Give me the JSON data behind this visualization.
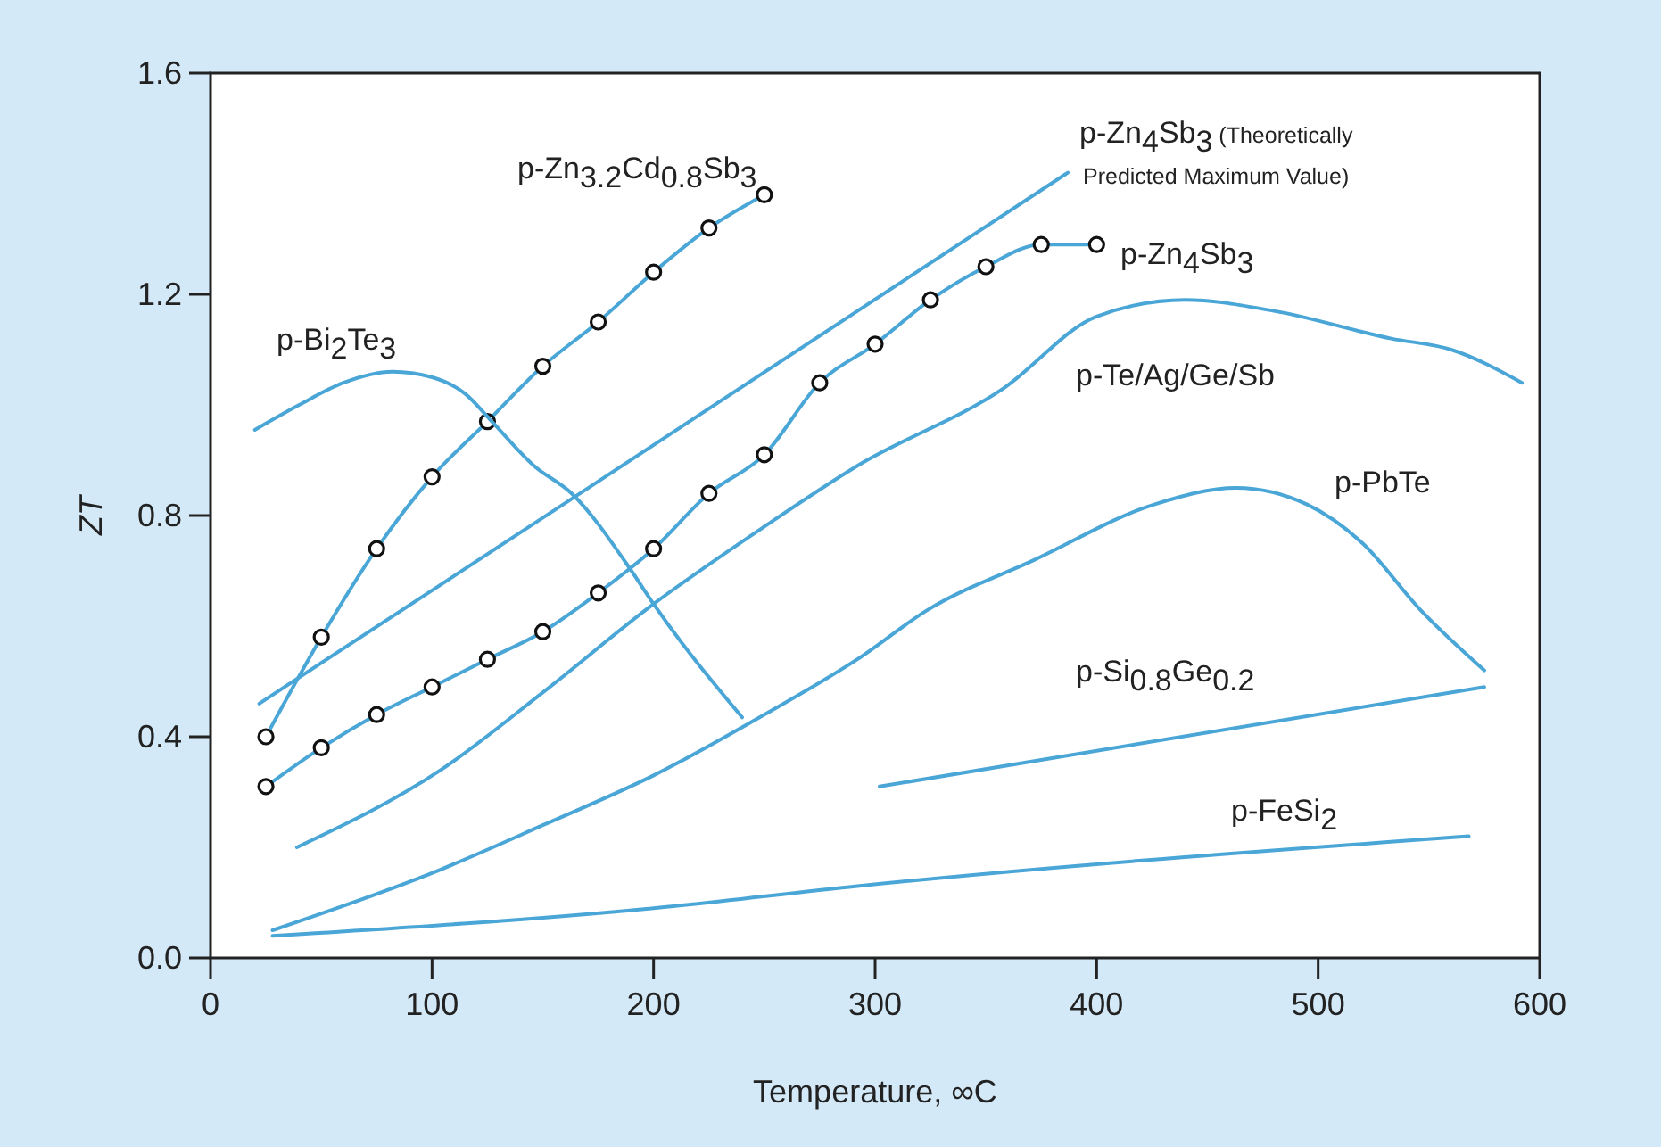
{
  "chart_data": {
    "type": "line",
    "xlabel": "Temperature, ∞C",
    "ylabel": "ZT",
    "xlim": [
      0,
      600
    ],
    "ylim": [
      0,
      1.6
    ],
    "xticks": [
      0,
      100,
      200,
      300,
      400,
      500,
      600
    ],
    "yticks": [
      {
        "value": 0,
        "label": "0.0"
      },
      {
        "value": 0.4,
        "label": "0.4"
      },
      {
        "value": 0.8,
        "label": "0.8"
      },
      {
        "value": 1.2,
        "label": "1.2"
      },
      {
        "value": 1.6,
        "label": "1.6"
      }
    ],
    "grid": false,
    "line_style": "solid",
    "series": [
      {
        "name": "p-Zn$_{3.2}$Cd$_{0.8}$Sb$_{3}$",
        "color": "#4aa6d6",
        "marker": "circle",
        "x": [
          25,
          50,
          75,
          100,
          125,
          150,
          175,
          200,
          225,
          250
        ],
        "values": [
          0.4,
          0.58,
          0.74,
          0.87,
          0.97,
          1.07,
          1.15,
          1.24,
          1.32,
          1.38
        ]
      },
      {
        "name": "p-Zn$_{4}$Sb$_{3}$ (Theoretically Predicted Maximum Value)",
        "color": "#4aa6d6",
        "marker": "none",
        "x": [
          22,
          163,
          387
        ],
        "values": [
          0.46,
          0.83,
          1.42
        ]
      },
      {
        "name": "p-Zn$_{4}$Sb$_{3}$",
        "color": "#4aa6d6",
        "marker": "circle",
        "x": [
          25,
          50,
          75,
          100,
          125,
          150,
          175,
          200,
          225,
          250,
          275,
          300,
          325,
          350,
          375,
          400
        ],
        "values": [
          0.31,
          0.38,
          0.44,
          0.49,
          0.54,
          0.59,
          0.66,
          0.74,
          0.84,
          0.91,
          1.04,
          1.11,
          1.19,
          1.25,
          1.29,
          1.29
        ]
      },
      {
        "name": "p-Bi$_{2}$Te$_{3}$",
        "color": "#4aa6d6",
        "marker": "none",
        "x": [
          20,
          40,
          60,
          82,
          100,
          115,
          127,
          146,
          163,
          190,
          200,
          240
        ],
        "values": [
          0.955,
          1.0,
          1.04,
          1.06,
          1.05,
          1.02,
          0.97,
          0.89,
          0.84,
          0.7,
          0.64,
          0.435
        ]
      },
      {
        "name": "p-Te/Ag/Ge/Sb",
        "color": "#4aa6d6",
        "marker": "none",
        "x": [
          39,
          104,
          150,
          200,
          250,
          292,
          358,
          400,
          440,
          480,
          533,
          560,
          592
        ],
        "values": [
          0.2,
          0.34,
          0.48,
          0.64,
          0.78,
          0.89,
          1.03,
          1.16,
          1.19,
          1.17,
          1.12,
          1.1,
          1.04
        ]
      },
      {
        "name": "p-PbTe",
        "color": "#4aa6d6",
        "marker": "none",
        "x": [
          28,
          104,
          150,
          200,
          250,
          292,
          324,
          372,
          426,
          463,
          495,
          520,
          546,
          575
        ],
        "values": [
          0.05,
          0.16,
          0.24,
          0.33,
          0.44,
          0.54,
          0.63,
          0.72,
          0.82,
          0.85,
          0.82,
          0.75,
          0.63,
          0.52
        ]
      },
      {
        "name": "p-Si$_{0.8}$Ge$_{0.2}$",
        "color": "#4aa6d6",
        "marker": "none",
        "x": [
          302,
          575
        ],
        "values": [
          0.31,
          0.49
        ]
      },
      {
        "name": "p-FeSi$_{2}$",
        "color": "#4aa6d6",
        "marker": "none",
        "x": [
          28,
          200,
          292,
          568
        ],
        "values": [
          0.04,
          0.09,
          0.13,
          0.22
        ]
      }
    ]
  }
}
